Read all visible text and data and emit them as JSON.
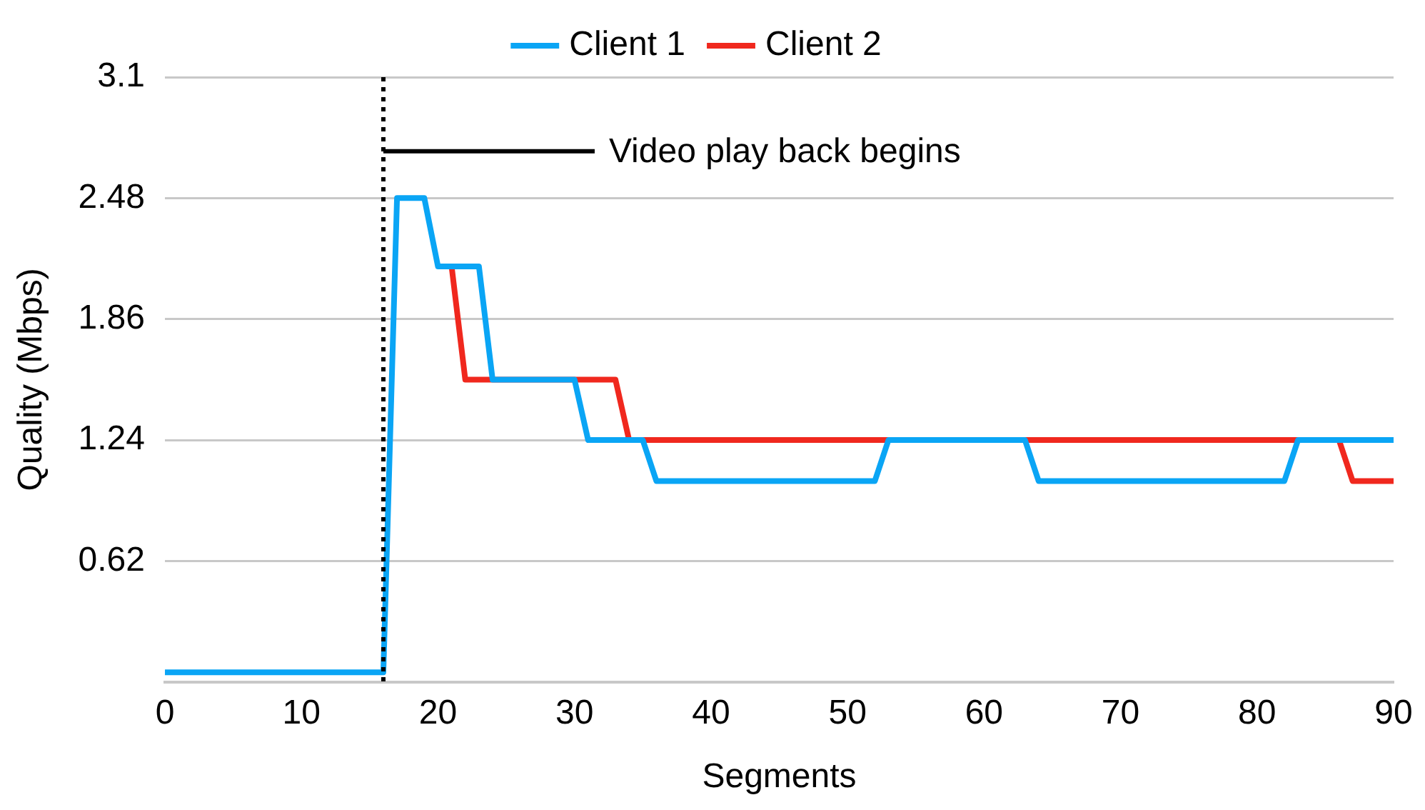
{
  "chart_data": {
    "type": "line",
    "xlabel": "Segments",
    "ylabel": "Quality (Mbps)",
    "series": [
      {
        "name": "Client 1",
        "color": "#0aa5f5",
        "x": [
          0,
          16,
          17,
          19,
          20,
          23,
          24,
          30,
          31,
          35,
          36,
          52,
          53,
          63,
          64,
          82,
          83,
          90
        ],
        "values": [
          0.05,
          0.05,
          2.48,
          2.48,
          2.13,
          2.13,
          1.55,
          1.55,
          1.24,
          1.24,
          1.03,
          1.03,
          1.24,
          1.24,
          1.03,
          1.03,
          1.24,
          1.24
        ]
      },
      {
        "name": "Client 2",
        "color": "#f0281e",
        "x": [
          21,
          22,
          33,
          34,
          86,
          87,
          90
        ],
        "values": [
          2.13,
          1.55,
          1.55,
          1.24,
          1.24,
          1.03,
          1.03
        ]
      }
    ],
    "xlim": [
      0,
      90
    ],
    "xticks": [
      0,
      10,
      20,
      30,
      40,
      50,
      60,
      70,
      80,
      90
    ],
    "ylim": [
      0,
      3.1
    ],
    "yticks": [
      {
        "value": 0,
        "label": null
      },
      0.62,
      1.24,
      1.86,
      2.48,
      3.1
    ],
    "grid": "y",
    "legend": "top",
    "marker": "none",
    "line_style": "solid",
    "ref_lines": [
      {
        "axis": "x",
        "value": 16,
        "label": null,
        "color": "#000000",
        "line_style": "dotted"
      }
    ],
    "annotations": [
      {
        "text": "Video play back begins",
        "x": 16,
        "y": 2.72
      }
    ]
  }
}
